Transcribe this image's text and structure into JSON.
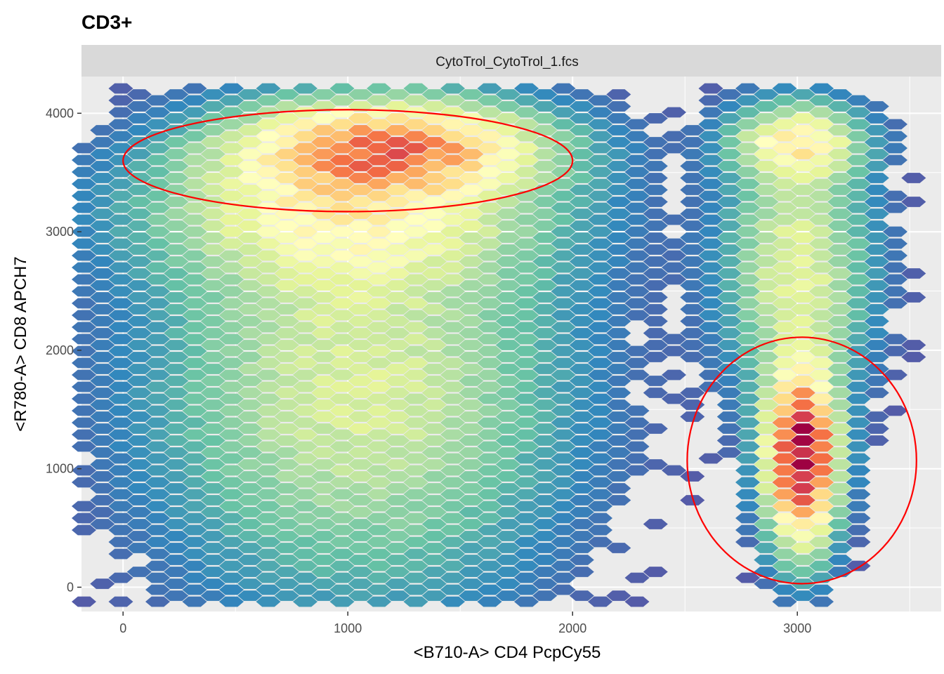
{
  "title": "CD3+",
  "facet_label": "CytoTrol_CytoTrol_1.fcs",
  "chart_data": {
    "type": "heatmap",
    "subtype": "hexbin",
    "title": "CD3+",
    "facet": "CytoTrol_CytoTrol_1.fcs",
    "xlabel": "<B710-A> CD4 PcpCy55",
    "ylabel": "<R780-A> CD8 APCH7",
    "xlim": [
      -185,
      3640
    ],
    "ylim": [
      -205,
      4310
    ],
    "x_ticks": [
      0,
      1000,
      2000,
      3000
    ],
    "y_ticks": [
      0,
      1000,
      2000,
      3000,
      4000
    ],
    "x_tick_labels": [
      "0",
      "1000",
      "2000",
      "3000"
    ],
    "y_tick_labels": [
      "0",
      "1000",
      "2000",
      "3000",
      "4000"
    ],
    "grid": true,
    "legend": "none",
    "color_scale": [
      "#5e4fa2",
      "#3288bd",
      "#66c2a5",
      "#abdda4",
      "#e6f598",
      "#ffffbf",
      "#fee08b",
      "#fdae61",
      "#f46d43",
      "#d53e4f",
      "#9e0142"
    ],
    "populations": [
      {
        "cx": 1190,
        "cy": 3730,
        "sx": 430,
        "sy": 250,
        "peak": 0.58
      },
      {
        "cx": 1000,
        "cy": 3200,
        "sx": 560,
        "sy": 420,
        "peak": 0.32
      },
      {
        "cx": 1050,
        "cy": 1700,
        "sx": 560,
        "sy": 1100,
        "peak": 0.28
      },
      {
        "cx": 3020,
        "cy": 1100,
        "sx": 100,
        "sy": 480,
        "peak": 1.0
      },
      {
        "cx": 3000,
        "cy": 2700,
        "sx": 200,
        "sy": 700,
        "peak": 0.3
      },
      {
        "cx": 3000,
        "cy": 3750,
        "sx": 180,
        "sy": 200,
        "peak": 0.38
      }
    ],
    "gates": [
      {
        "cx": 1000,
        "cy": 3600,
        "rx": 1000,
        "ry": 430,
        "color": "#ff0000"
      },
      {
        "cx": 3020,
        "cy": 1070,
        "rx": 510,
        "ry": 1040,
        "color": "#ff0000"
      }
    ]
  }
}
